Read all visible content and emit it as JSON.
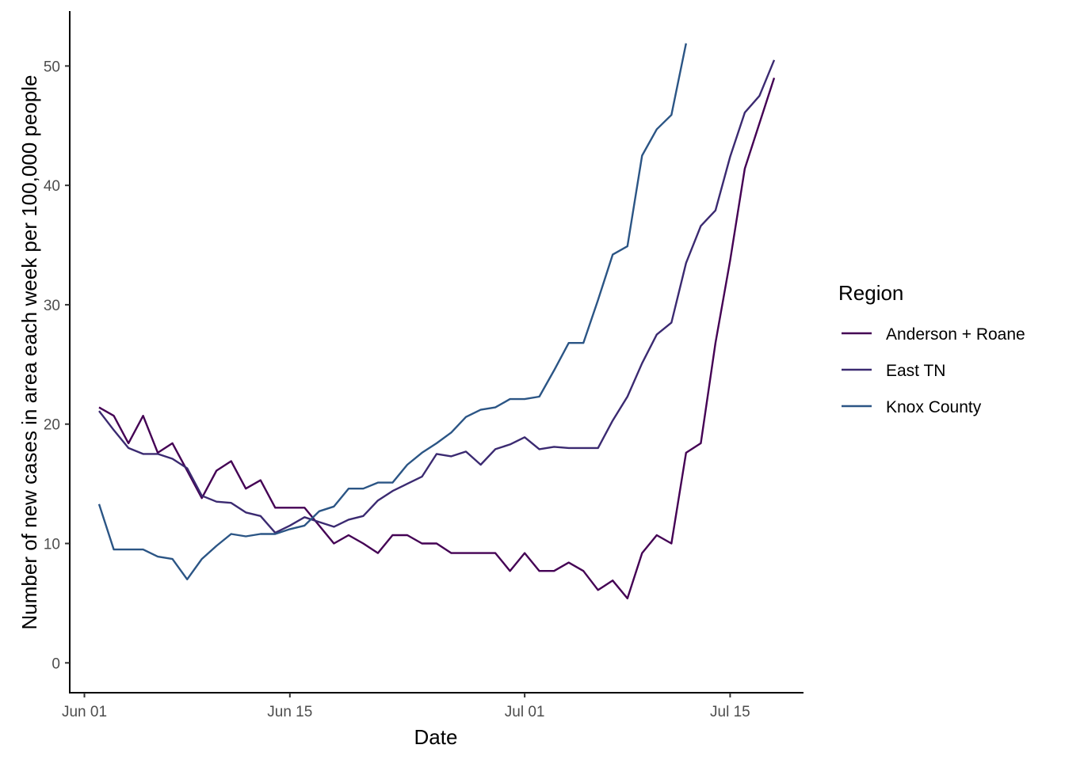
{
  "chart_data": {
    "type": "line",
    "xlabel": "Date",
    "ylabel": "Number of new cases in area each week per 100,000 people",
    "x_tick_labels": [
      "Jun 01",
      "Jun 15",
      "Jul 01",
      "Jul 15"
    ],
    "x_tick_dates": [
      "2020-06-01",
      "2020-06-15",
      "2020-07-01",
      "2020-07-15"
    ],
    "y_tick_labels": [
      "0",
      "10",
      "20",
      "30",
      "40",
      "50"
    ],
    "y_ticks": [
      0,
      10,
      20,
      30,
      40,
      50
    ],
    "xlim": [
      "2020-05-31",
      "2020-07-20"
    ],
    "ylim": [
      -2.5,
      54.6
    ],
    "grid": false,
    "legend": {
      "title": "Region",
      "position": "right"
    },
    "series": [
      {
        "name": "Anderson + Roane",
        "color": "#440154",
        "x": [
          "2020-06-02",
          "2020-06-03",
          "2020-06-04",
          "2020-06-05",
          "2020-06-06",
          "2020-06-07",
          "2020-06-08",
          "2020-06-09",
          "2020-06-10",
          "2020-06-11",
          "2020-06-12",
          "2020-06-13",
          "2020-06-14",
          "2020-06-15",
          "2020-06-16",
          "2020-06-17",
          "2020-06-18",
          "2020-06-19",
          "2020-06-20",
          "2020-06-21",
          "2020-06-22",
          "2020-06-23",
          "2020-06-24",
          "2020-06-25",
          "2020-06-26",
          "2020-06-27",
          "2020-06-28",
          "2020-06-29",
          "2020-06-30",
          "2020-07-01",
          "2020-07-02",
          "2020-07-03",
          "2020-07-04",
          "2020-07-05",
          "2020-07-06",
          "2020-07-07",
          "2020-07-08",
          "2020-07-09",
          "2020-07-10",
          "2020-07-11",
          "2020-07-12",
          "2020-07-13",
          "2020-07-14",
          "2020-07-15",
          "2020-07-16",
          "2020-07-17",
          "2020-07-18"
        ],
        "values": [
          21.4,
          20.7,
          18.4,
          20.7,
          17.6,
          18.4,
          16.1,
          13.8,
          16.1,
          16.9,
          14.6,
          15.3,
          13.0,
          13.0,
          13.0,
          11.5,
          10.0,
          10.7,
          10.0,
          9.2,
          10.7,
          10.7,
          10.0,
          10.0,
          9.2,
          9.2,
          9.2,
          9.2,
          7.7,
          9.2,
          7.7,
          7.7,
          8.4,
          7.7,
          6.1,
          6.9,
          5.4,
          9.2,
          10.7,
          10.0,
          17.6,
          18.4,
          26.8,
          33.7,
          41.4,
          45.2,
          49.0
        ]
      },
      {
        "name": "East TN",
        "color": "#3b2a71",
        "x": [
          "2020-06-02",
          "2020-06-03",
          "2020-06-04",
          "2020-06-05",
          "2020-06-06",
          "2020-06-07",
          "2020-06-08",
          "2020-06-09",
          "2020-06-10",
          "2020-06-11",
          "2020-06-12",
          "2020-06-13",
          "2020-06-14",
          "2020-06-15",
          "2020-06-16",
          "2020-06-17",
          "2020-06-18",
          "2020-06-19",
          "2020-06-20",
          "2020-06-21",
          "2020-06-22",
          "2020-06-23",
          "2020-06-24",
          "2020-06-25",
          "2020-06-26",
          "2020-06-27",
          "2020-06-28",
          "2020-06-29",
          "2020-06-30",
          "2020-07-01",
          "2020-07-02",
          "2020-07-03",
          "2020-07-04",
          "2020-07-05",
          "2020-07-06",
          "2020-07-07",
          "2020-07-08",
          "2020-07-09",
          "2020-07-10",
          "2020-07-11",
          "2020-07-12",
          "2020-07-13",
          "2020-07-14",
          "2020-07-15",
          "2020-07-16",
          "2020-07-17",
          "2020-07-18"
        ],
        "values": [
          21.1,
          19.5,
          18.0,
          17.5,
          17.5,
          17.1,
          16.3,
          14.0,
          13.5,
          13.4,
          12.6,
          12.3,
          10.9,
          11.5,
          12.2,
          11.8,
          11.4,
          12.0,
          12.3,
          13.6,
          14.4,
          15.0,
          15.6,
          17.5,
          17.3,
          17.7,
          16.6,
          17.9,
          18.3,
          18.9,
          17.9,
          18.1,
          18.0,
          18.0,
          18.0,
          20.3,
          22.3,
          25.1,
          27.5,
          28.5,
          33.5,
          36.6,
          37.9,
          42.4,
          46.1,
          47.5,
          50.5
        ]
      },
      {
        "name": "Knox County",
        "color": "#2b5585",
        "x": [
          "2020-06-02",
          "2020-06-03",
          "2020-06-04",
          "2020-06-05",
          "2020-06-06",
          "2020-06-07",
          "2020-06-08",
          "2020-06-09",
          "2020-06-10",
          "2020-06-11",
          "2020-06-12",
          "2020-06-13",
          "2020-06-14",
          "2020-06-15",
          "2020-06-16",
          "2020-06-17",
          "2020-06-18",
          "2020-06-19",
          "2020-06-20",
          "2020-06-21",
          "2020-06-22",
          "2020-06-23",
          "2020-06-24",
          "2020-06-25",
          "2020-06-26",
          "2020-06-27",
          "2020-06-28",
          "2020-06-29",
          "2020-06-30",
          "2020-07-01",
          "2020-07-02",
          "2020-07-03",
          "2020-07-04",
          "2020-07-05",
          "2020-07-06",
          "2020-07-07",
          "2020-07-08",
          "2020-07-09",
          "2020-07-10",
          "2020-07-11",
          "2020-07-12"
        ],
        "values": [
          13.3,
          9.5,
          9.5,
          9.5,
          8.9,
          8.7,
          7.0,
          8.7,
          9.8,
          10.8,
          10.6,
          10.8,
          10.8,
          11.2,
          11.5,
          12.7,
          13.1,
          14.6,
          14.6,
          15.1,
          15.1,
          16.6,
          17.6,
          18.4,
          19.3,
          20.6,
          21.2,
          21.4,
          22.1,
          22.1,
          22.3,
          24.5,
          26.8,
          26.8,
          30.4,
          34.2,
          34.9,
          42.5,
          44.7,
          45.9,
          51.9
        ]
      }
    ]
  }
}
